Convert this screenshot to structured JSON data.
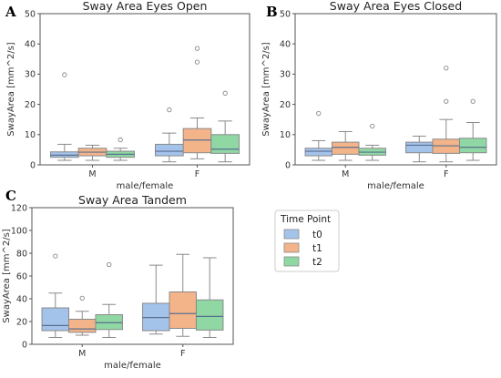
{
  "colors": {
    "t0": "#a4c3ea",
    "t1": "#f4b48a",
    "t2": "#8fd8a3",
    "median": "#5a6f8f",
    "whisker": "#8a8a8a",
    "frame": "#555555"
  },
  "legend": {
    "title": "Time Point",
    "entries": [
      "t0",
      "t1",
      "t2"
    ]
  },
  "chart_data": [
    {
      "type": "box",
      "panel_letter": "A",
      "title": "Sway Area Eyes Open",
      "xlabel": "male/female",
      "ylabel": "SwayArea [mm^2/s]",
      "ylim": [
        0,
        50
      ],
      "yticks": [
        "0",
        "10",
        "20",
        "30",
        "40",
        "50"
      ],
      "categories": [
        "M",
        "F"
      ],
      "series": [
        {
          "name": "t0",
          "boxes": [
            {
              "whislo": 1.5,
              "q1": 2.5,
              "med": 3.2,
              "q3": 4.3,
              "whishi": 6.8,
              "fliers": [
                29.8
              ]
            },
            {
              "whislo": 1.0,
              "q1": 3.0,
              "med": 4.5,
              "q3": 6.8,
              "whishi": 10.5,
              "fliers": [
                18.2
              ]
            }
          ]
        },
        {
          "name": "t1",
          "boxes": [
            {
              "whislo": 1.5,
              "q1": 3.0,
              "med": 4.2,
              "q3": 5.5,
              "whishi": 6.5,
              "fliers": []
            },
            {
              "whislo": 2.0,
              "q1": 4.0,
              "med": 8.2,
              "q3": 12.0,
              "whishi": 15.5,
              "fliers": [
                34.0,
                38.5
              ]
            }
          ]
        },
        {
          "name": "t2",
          "boxes": [
            {
              "whislo": 1.5,
              "q1": 2.5,
              "med": 3.5,
              "q3": 4.5,
              "whishi": 5.5,
              "fliers": [
                8.3
              ]
            },
            {
              "whislo": 1.0,
              "q1": 3.8,
              "med": 5.2,
              "q3": 10.0,
              "whishi": 14.5,
              "fliers": [
                23.7
              ]
            }
          ]
        }
      ]
    },
    {
      "type": "box",
      "panel_letter": "B",
      "title": "Sway Area Eyes Closed",
      "xlabel": "male/female",
      "ylabel": "SwayArea [mm^2/s]",
      "ylim": [
        0,
        50
      ],
      "yticks": [
        "0",
        "10",
        "20",
        "30",
        "40",
        "50"
      ],
      "categories": [
        "M",
        "F"
      ],
      "series": [
        {
          "name": "t0",
          "boxes": [
            {
              "whislo": 1.5,
              "q1": 3.0,
              "med": 4.5,
              "q3": 5.5,
              "whishi": 8.0,
              "fliers": [
                17.0
              ]
            },
            {
              "whislo": 1.0,
              "q1": 4.0,
              "med": 6.5,
              "q3": 7.5,
              "whishi": 9.5,
              "fliers": []
            }
          ]
        },
        {
          "name": "t1",
          "boxes": [
            {
              "whislo": 1.5,
              "q1": 3.5,
              "med": 5.8,
              "q3": 7.5,
              "whishi": 11.0,
              "fliers": []
            },
            {
              "whislo": 1.0,
              "q1": 3.8,
              "med": 6.3,
              "q3": 8.5,
              "whishi": 15.0,
              "fliers": [
                21.0,
                32.0
              ]
            }
          ]
        },
        {
          "name": "t2",
          "boxes": [
            {
              "whislo": 1.5,
              "q1": 3.2,
              "med": 4.2,
              "q3": 5.5,
              "whishi": 6.5,
              "fliers": [
                12.8
              ]
            },
            {
              "whislo": 1.5,
              "q1": 4.0,
              "med": 5.8,
              "q3": 8.8,
              "whishi": 14.0,
              "fliers": [
                21.0
              ]
            }
          ]
        }
      ]
    },
    {
      "type": "box",
      "panel_letter": "C",
      "title": "Sway Area Tandem",
      "xlabel": "male/female",
      "ylabel": "SwayArea [mm^2/s]",
      "ylim": [
        0,
        120
      ],
      "yticks": [
        "0",
        "20",
        "40",
        "60",
        "80",
        "100",
        "120"
      ],
      "categories": [
        "M",
        "F"
      ],
      "series": [
        {
          "name": "t0",
          "boxes": [
            {
              "whislo": 6.0,
              "q1": 12.0,
              "med": 16.5,
              "q3": 32.0,
              "whishi": 45.0,
              "fliers": [
                77.5
              ]
            },
            {
              "whislo": 9.0,
              "q1": 12.0,
              "med": 23.5,
              "q3": 36.0,
              "whishi": 69.5,
              "fliers": []
            }
          ]
        },
        {
          "name": "t1",
          "boxes": [
            {
              "whislo": 8.0,
              "q1": 10.5,
              "med": 13.5,
              "q3": 22.0,
              "whishi": 29.0,
              "fliers": [
                40.5
              ]
            },
            {
              "whislo": 7.0,
              "q1": 14.0,
              "med": 27.0,
              "q3": 46.0,
              "whishi": 79.0,
              "fliers": []
            }
          ]
        },
        {
          "name": "t2",
          "boxes": [
            {
              "whislo": 6.0,
              "q1": 13.0,
              "med": 19.0,
              "q3": 26.0,
              "whishi": 35.0,
              "fliers": [
                70.0
              ]
            },
            {
              "whislo": 6.0,
              "q1": 12.5,
              "med": 24.5,
              "q3": 39.0,
              "whishi": 76.0,
              "fliers": []
            }
          ]
        }
      ]
    }
  ]
}
